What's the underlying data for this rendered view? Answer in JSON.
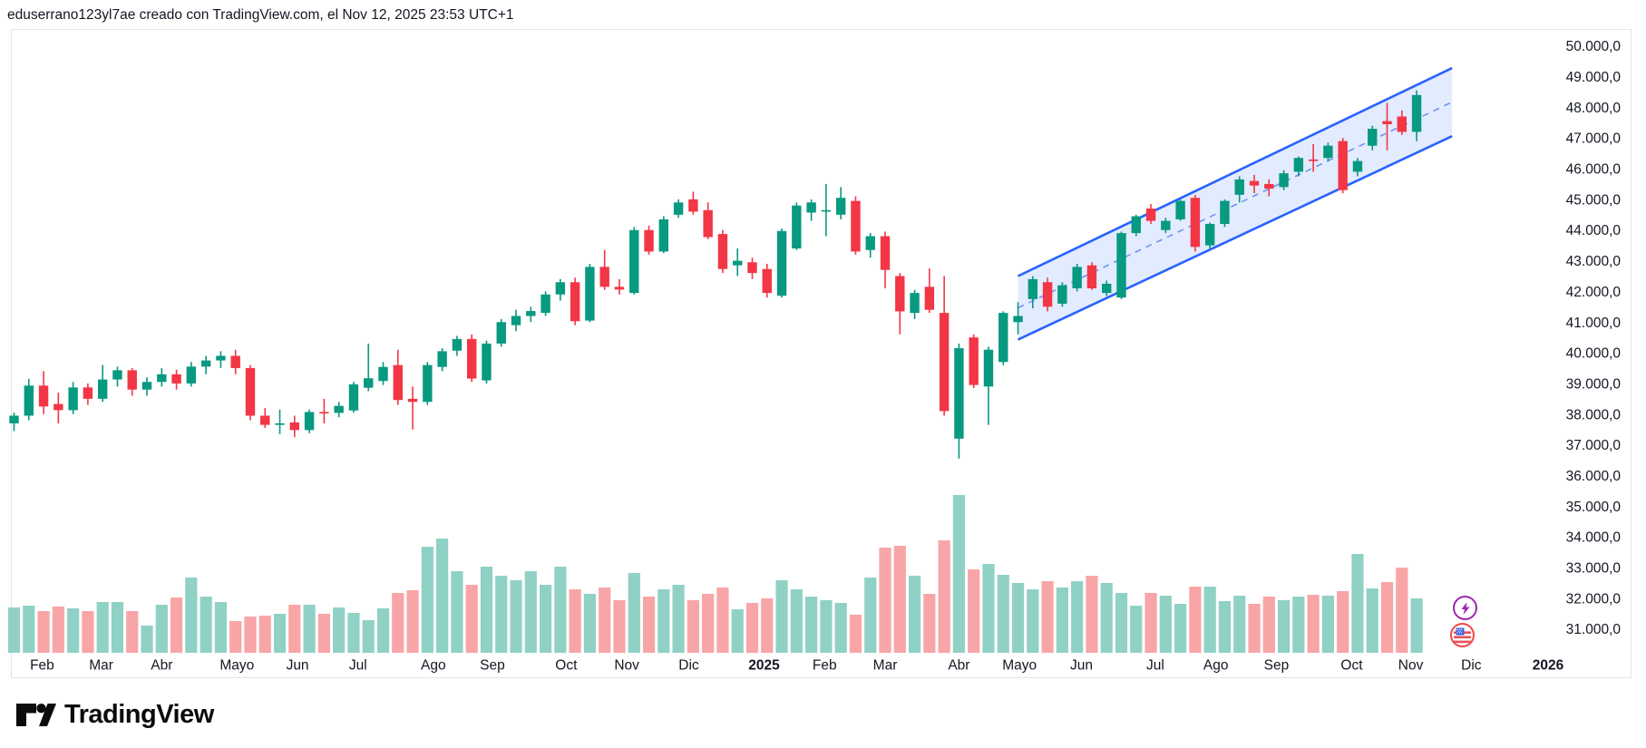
{
  "header": {
    "attribution": "eduserrano123yl7ae creado con TradingView.com, el Nov 12, 2025 23:53 UTC+1"
  },
  "footer": {
    "brand": "TradingView"
  },
  "colors": {
    "up": "#089981",
    "down": "#f23645",
    "vol_up": "#90d1c6",
    "vol_down": "#f8a5a7",
    "channel_line": "#2962ff",
    "channel_fill": "rgba(41,98,255,0.13)",
    "channel_mid": "#6f93f2",
    "text": "#131722",
    "border": "#e0e3eb",
    "badge_purple": "#9c27b0",
    "badge_red": "#f24645",
    "flag_blue": "#3b5bdb",
    "flag_red": "#e8505b"
  },
  "icons": {
    "events_lightning": "lightning-bolt",
    "events_flag": "us-flag"
  },
  "chart_data": {
    "type": "candlestick+volume",
    "title": "",
    "interval": "weekly",
    "grid": false,
    "price_axis": {
      "min": 31000,
      "max": 50000,
      "step": 1000,
      "labels": [
        "50.000,0",
        "49.000,0",
        "48.000,0",
        "47.000,0",
        "46.000,0",
        "45.000,0",
        "44.000,0",
        "43.000,0",
        "42.000,0",
        "41.000,0",
        "40.000,0",
        "39.000,0",
        "38.000,0",
        "37.000,0",
        "36.000,0",
        "35.000,0",
        "34.000,0",
        "33.000,0",
        "32.000,0",
        "31.000,0"
      ],
      "label_prices": [
        50000,
        49000,
        48000,
        47000,
        46000,
        45000,
        44000,
        43000,
        42000,
        41000,
        40000,
        39000,
        38000,
        37000,
        36000,
        35000,
        34000,
        33000,
        32000,
        31000
      ]
    },
    "time_axis": {
      "months": [
        {
          "label": "Feb",
          "k": 1.9,
          "bold": false
        },
        {
          "label": "Mar",
          "k": 5.9,
          "bold": false
        },
        {
          "label": "Abr",
          "k": 10.0,
          "bold": false
        },
        {
          "label": "Mayo",
          "k": 15.1,
          "bold": false
        },
        {
          "label": "Jun",
          "k": 19.2,
          "bold": false
        },
        {
          "label": "Jul",
          "k": 23.3,
          "bold": false
        },
        {
          "label": "Ago",
          "k": 28.4,
          "bold": false
        },
        {
          "label": "Sep",
          "k": 32.4,
          "bold": false
        },
        {
          "label": "Oct",
          "k": 37.4,
          "bold": false
        },
        {
          "label": "Nov",
          "k": 41.5,
          "bold": false
        },
        {
          "label": "Dic",
          "k": 45.7,
          "bold": false
        },
        {
          "label": "2025",
          "k": 50.8,
          "bold": true
        },
        {
          "label": "Feb",
          "k": 54.9,
          "bold": false
        },
        {
          "label": "Mar",
          "k": 59.0,
          "bold": false
        },
        {
          "label": "Abr",
          "k": 64.0,
          "bold": false
        },
        {
          "label": "Mayo",
          "k": 68.1,
          "bold": false
        },
        {
          "label": "Jun",
          "k": 72.3,
          "bold": false
        },
        {
          "label": "Jul",
          "k": 77.3,
          "bold": false
        },
        {
          "label": "Ago",
          "k": 81.4,
          "bold": false
        },
        {
          "label": "Sep",
          "k": 85.5,
          "bold": false
        },
        {
          "label": "Oct",
          "k": 90.6,
          "bold": false
        },
        {
          "label": "Nov",
          "k": 94.6,
          "bold": false
        },
        {
          "label": "Dic",
          "k": 98.7,
          "bold": false
        },
        {
          "label": "2026",
          "k": 103.9,
          "bold": true
        }
      ]
    },
    "channel": {
      "k1": 68,
      "k2": 97.4,
      "upper_p1": 42500,
      "upper_p2": 49280,
      "lower_p1": 40430,
      "lower_p2": 47060,
      "midline_dashed": true
    },
    "candles_format": [
      "open",
      "high",
      "low",
      "close",
      "volume"
    ],
    "candles": [
      [
        37700,
        38050,
        37450,
        37950,
        50
      ],
      [
        37950,
        39150,
        37800,
        38930,
        52
      ],
      [
        38930,
        39400,
        38000,
        38250,
        46
      ],
      [
        38330,
        38700,
        37700,
        38130,
        51
      ],
      [
        38130,
        39050,
        38000,
        38870,
        49
      ],
      [
        38870,
        39000,
        38300,
        38500,
        46
      ],
      [
        38500,
        39600,
        38400,
        39130,
        56
      ],
      [
        39130,
        39550,
        38900,
        39430,
        56
      ],
      [
        39430,
        39500,
        38600,
        38800,
        46
      ],
      [
        38800,
        39200,
        38600,
        39050,
        30
      ],
      [
        39050,
        39500,
        38900,
        39300,
        53
      ],
      [
        39300,
        39450,
        38800,
        39000,
        61
      ],
      [
        39000,
        39700,
        38900,
        39550,
        83
      ],
      [
        39550,
        39900,
        39300,
        39750,
        62
      ],
      [
        39750,
        40050,
        39500,
        39900,
        56
      ],
      [
        39900,
        40100,
        39300,
        39500,
        35
      ],
      [
        39500,
        39600,
        37800,
        37950,
        40
      ],
      [
        37950,
        38200,
        37550,
        37650,
        41
      ],
      [
        37650,
        38150,
        37350,
        37700,
        43
      ],
      [
        37730,
        37950,
        37250,
        37480,
        53
      ],
      [
        37480,
        38150,
        37380,
        38070,
        53
      ],
      [
        38070,
        38500,
        37700,
        38040,
        43
      ],
      [
        38040,
        38400,
        37900,
        38270,
        50
      ],
      [
        38120,
        39050,
        38050,
        38970,
        44
      ],
      [
        38860,
        40300,
        38750,
        39170,
        36
      ],
      [
        39080,
        39700,
        38950,
        39540,
        49
      ],
      [
        39600,
        40100,
        38300,
        38460,
        66
      ],
      [
        38500,
        38900,
        37500,
        38400,
        69
      ],
      [
        38400,
        39700,
        38300,
        39600,
        117
      ],
      [
        39540,
        40150,
        39400,
        40050,
        126
      ],
      [
        40070,
        40550,
        39900,
        40450,
        90
      ],
      [
        40450,
        40600,
        39050,
        39160,
        75
      ],
      [
        39100,
        40400,
        39000,
        40300,
        95
      ],
      [
        40300,
        41100,
        40200,
        41000,
        85
      ],
      [
        40900,
        41400,
        40700,
        41200,
        80
      ],
      [
        41200,
        41500,
        41000,
        41360,
        90
      ],
      [
        41300,
        42000,
        41200,
        41900,
        75
      ],
      [
        41900,
        42400,
        41700,
        42300,
        95
      ],
      [
        42300,
        42450,
        40900,
        41030,
        70
      ],
      [
        41050,
        42900,
        41000,
        42800,
        65
      ],
      [
        42800,
        43350,
        42050,
        42150,
        72
      ],
      [
        42150,
        42400,
        41900,
        42060,
        58
      ],
      [
        41950,
        44100,
        41900,
        44000,
        88
      ],
      [
        44000,
        44150,
        43200,
        43300,
        62
      ],
      [
        43300,
        44450,
        43250,
        44350,
        70
      ],
      [
        44500,
        45000,
        44400,
        44900,
        75
      ],
      [
        45000,
        45250,
        44500,
        44600,
        58
      ],
      [
        44650,
        44900,
        43700,
        43770,
        65
      ],
      [
        43870,
        44000,
        42600,
        42730,
        72
      ],
      [
        42850,
        43400,
        42500,
        43000,
        48
      ],
      [
        42950,
        43100,
        42400,
        42600,
        55
      ],
      [
        42730,
        42900,
        41800,
        41950,
        60
      ],
      [
        41860,
        44050,
        41800,
        43970,
        80
      ],
      [
        43400,
        44900,
        43350,
        44800,
        70
      ],
      [
        44570,
        45000,
        44300,
        44900,
        62
      ],
      [
        44600,
        45500,
        43800,
        44650,
        58
      ],
      [
        44500,
        45400,
        44350,
        45050,
        55
      ],
      [
        44950,
        45100,
        43200,
        43300,
        42
      ],
      [
        43350,
        43900,
        43100,
        43800,
        83
      ],
      [
        43800,
        43950,
        42100,
        42700,
        116
      ],
      [
        42500,
        42600,
        40600,
        41350,
        118
      ],
      [
        41300,
        42050,
        41100,
        41950,
        85
      ],
      [
        42150,
        42750,
        41300,
        41400,
        65
      ],
      [
        41300,
        42500,
        37950,
        38100,
        124
      ],
      [
        37200,
        40300,
        36550,
        40150,
        174
      ],
      [
        40500,
        40600,
        38850,
        38950,
        92
      ],
      [
        38900,
        40200,
        37650,
        40100,
        98
      ],
      [
        39700,
        41350,
        39600,
        41300,
        86
      ],
      [
        41000,
        41650,
        40600,
        41200,
        77
      ],
      [
        41750,
        42500,
        41450,
        42400,
        70
      ],
      [
        42300,
        42450,
        41350,
        41500,
        79
      ],
      [
        41600,
        42300,
        41500,
        42200,
        72
      ],
      [
        42100,
        42900,
        42000,
        42800,
        79
      ],
      [
        42850,
        42950,
        42050,
        42100,
        85
      ],
      [
        41950,
        42350,
        41850,
        42250,
        77
      ],
      [
        41800,
        43950,
        41750,
        43900,
        66
      ],
      [
        43900,
        44500,
        43800,
        44450,
        52
      ],
      [
        44700,
        44850,
        44200,
        44300,
        66
      ],
      [
        44000,
        44400,
        43900,
        44300,
        63
      ],
      [
        44350,
        45000,
        44300,
        44950,
        54
      ],
      [
        45050,
        45150,
        43300,
        43450,
        73
      ],
      [
        43500,
        44250,
        43400,
        44200,
        73
      ],
      [
        44200,
        45000,
        44100,
        44950,
        57
      ],
      [
        45150,
        45750,
        44900,
        45650,
        63
      ],
      [
        45600,
        45800,
        45200,
        45450,
        54
      ],
      [
        45500,
        45650,
        45100,
        45350,
        62
      ],
      [
        45400,
        45950,
        45300,
        45850,
        58
      ],
      [
        45900,
        46400,
        45750,
        46350,
        62
      ],
      [
        46300,
        46800,
        45900,
        46250,
        64
      ],
      [
        46350,
        46850,
        46250,
        46750,
        63
      ],
      [
        46900,
        47000,
        45200,
        45300,
        68
      ],
      [
        45900,
        46350,
        45750,
        46250,
        109
      ],
      [
        46750,
        47400,
        46600,
        47300,
        71
      ],
      [
        47550,
        48150,
        46600,
        47450,
        78
      ],
      [
        47700,
        47900,
        47100,
        47200,
        94
      ],
      [
        47200,
        48550,
        46900,
        48400,
        60
      ]
    ]
  }
}
